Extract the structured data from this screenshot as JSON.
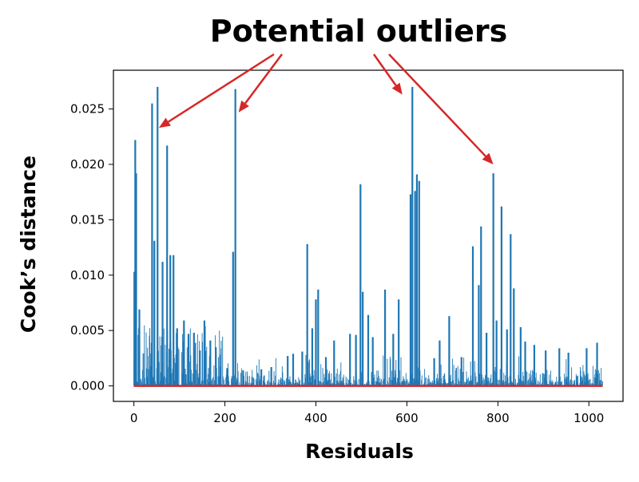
{
  "chart_data": {
    "type": "line",
    "title": "",
    "xlabel": "Residuals",
    "ylabel": "Cook’s distance",
    "xlim": [
      -45,
      1075
    ],
    "ylim": [
      -0.0014,
      0.0285
    ],
    "xticks": [
      0,
      200,
      400,
      600,
      800,
      1000
    ],
    "yticks": [
      0.0,
      0.005,
      0.01,
      0.015,
      0.02,
      0.025
    ],
    "ytick_labels": [
      "0.000",
      "0.005",
      "0.010",
      "0.015",
      "0.020",
      "0.025"
    ],
    "grid": false,
    "colors": {
      "stems": "#1f77b4",
      "baseline": "#d62728",
      "annotation": "#d62728"
    },
    "series": [
      {
        "style": "stem",
        "n_points": 1031,
        "peaks": [
          {
            "x": 1,
            "y": 0.0103
          },
          {
            "x": 3,
            "y": 0.0222
          },
          {
            "x": 5,
            "y": 0.0192
          },
          {
            "x": 12,
            "y": 0.0069
          },
          {
            "x": 40,
            "y": 0.0255
          },
          {
            "x": 45,
            "y": 0.0131
          },
          {
            "x": 52,
            "y": 0.027
          },
          {
            "x": 63,
            "y": 0.0112
          },
          {
            "x": 73,
            "y": 0.0217
          },
          {
            "x": 80,
            "y": 0.0118
          },
          {
            "x": 87,
            "y": 0.0118
          },
          {
            "x": 95,
            "y": 0.0052
          },
          {
            "x": 110,
            "y": 0.0059
          },
          {
            "x": 120,
            "y": 0.0047
          },
          {
            "x": 132,
            "y": 0.0048
          },
          {
            "x": 145,
            "y": 0.0032
          },
          {
            "x": 155,
            "y": 0.0059
          },
          {
            "x": 168,
            "y": 0.0041
          },
          {
            "x": 180,
            "y": 0.0035
          },
          {
            "x": 205,
            "y": 0.0016
          },
          {
            "x": 218,
            "y": 0.0121
          },
          {
            "x": 223,
            "y": 0.0268
          },
          {
            "x": 240,
            "y": 0.0014
          },
          {
            "x": 280,
            "y": 0.0015
          },
          {
            "x": 302,
            "y": 0.0017
          },
          {
            "x": 338,
            "y": 0.0027
          },
          {
            "x": 350,
            "y": 0.0029
          },
          {
            "x": 370,
            "y": 0.0031
          },
          {
            "x": 381,
            "y": 0.0128
          },
          {
            "x": 392,
            "y": 0.0052
          },
          {
            "x": 400,
            "y": 0.0078
          },
          {
            "x": 405,
            "y": 0.0087
          },
          {
            "x": 422,
            "y": 0.0026
          },
          {
            "x": 440,
            "y": 0.0041
          },
          {
            "x": 475,
            "y": 0.0047
          },
          {
            "x": 488,
            "y": 0.0046
          },
          {
            "x": 498,
            "y": 0.0182
          },
          {
            "x": 503,
            "y": 0.0085
          },
          {
            "x": 515,
            "y": 0.0064
          },
          {
            "x": 525,
            "y": 0.0044
          },
          {
            "x": 552,
            "y": 0.0087
          },
          {
            "x": 570,
            "y": 0.0047
          },
          {
            "x": 582,
            "y": 0.0078
          },
          {
            "x": 608,
            "y": 0.0173
          },
          {
            "x": 612,
            "y": 0.027
          },
          {
            "x": 618,
            "y": 0.0176
          },
          {
            "x": 622,
            "y": 0.0191
          },
          {
            "x": 627,
            "y": 0.0185
          },
          {
            "x": 660,
            "y": 0.0025
          },
          {
            "x": 672,
            "y": 0.0041
          },
          {
            "x": 693,
            "y": 0.0063
          },
          {
            "x": 720,
            "y": 0.0026
          },
          {
            "x": 745,
            "y": 0.0126
          },
          {
            "x": 758,
            "y": 0.0091
          },
          {
            "x": 763,
            "y": 0.0144
          },
          {
            "x": 775,
            "y": 0.0048
          },
          {
            "x": 790,
            "y": 0.0192
          },
          {
            "x": 797,
            "y": 0.0059
          },
          {
            "x": 808,
            "y": 0.0162
          },
          {
            "x": 820,
            "y": 0.0051
          },
          {
            "x": 828,
            "y": 0.0137
          },
          {
            "x": 835,
            "y": 0.0088
          },
          {
            "x": 850,
            "y": 0.0053
          },
          {
            "x": 860,
            "y": 0.004
          },
          {
            "x": 880,
            "y": 0.0037
          },
          {
            "x": 905,
            "y": 0.0032
          },
          {
            "x": 935,
            "y": 0.0034
          },
          {
            "x": 955,
            "y": 0.003
          },
          {
            "x": 995,
            "y": 0.0034
          },
          {
            "x": 1018,
            "y": 0.0039
          }
        ]
      }
    ],
    "annotations": [
      {
        "text": "Potential outliers",
        "targets": [
          {
            "x": 55,
            "y": 0.0233
          },
          {
            "x": 230,
            "y": 0.0247
          },
          {
            "x": 590,
            "y": 0.0263
          },
          {
            "x": 790,
            "y": 0.02
          }
        ]
      }
    ]
  }
}
